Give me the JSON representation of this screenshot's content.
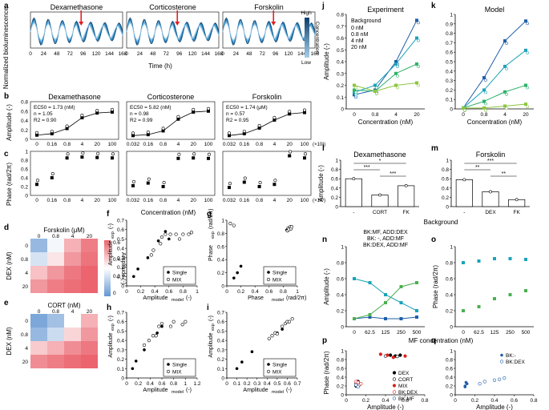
{
  "panel_letters": [
    "a",
    "b",
    "c",
    "d",
    "e",
    "f",
    "g",
    "h",
    "i",
    "j",
    "k",
    "l",
    "m",
    "n",
    "o",
    "p",
    "q"
  ],
  "chart_data": [
    {
      "id": "a",
      "type": "line",
      "ylabel": "Normalized bioluminescence",
      "xlabel": "Time (h)",
      "xticks": [
        "0",
        "24",
        "48",
        "72",
        "96",
        "120",
        "144",
        "168"
      ],
      "titles": [
        "Dexamethasone",
        "Corticosterone",
        "Forskolin"
      ],
      "colorbar": {
        "high": "High",
        "low": "Low",
        "label": "Concentration"
      },
      "ylim": [
        0,
        1.5
      ],
      "yticks": [
        "0",
        "0.5",
        "1",
        "1.5"
      ]
    },
    {
      "id": "b",
      "type": "scatter",
      "ylabel": "Amplitude (-)",
      "yticks": [
        "0",
        "0.2",
        "0.4",
        "0.6",
        "0.8"
      ],
      "panels": [
        {
          "title": "Dexamethasone",
          "x": [
            "0",
            "0.16",
            "0.8",
            "4",
            "20",
            "100"
          ],
          "fit": [
            0.09,
            0.12,
            0.23,
            0.46,
            0.56,
            0.58
          ],
          "stats": [
            "EC50 = 1.73 (nM)",
            "n = 1.05",
            "R2 = 0.90"
          ]
        },
        {
          "title": "Corticosterone",
          "x": [
            "0.032",
            "0.16",
            "0.8",
            "4",
            "20",
            "100"
          ],
          "fit": [
            0.08,
            0.1,
            0.18,
            0.43,
            0.58,
            0.6
          ],
          "stats": [
            "EC50 = 5.82 (nM)",
            "n = 0.98",
            "R2 = 0.99"
          ]
        },
        {
          "title": "Forskolin",
          "x": [
            "0.032",
            "0.16",
            "0.8",
            "4",
            "20",
            "100"
          ],
          "fit": [
            0.08,
            0.12,
            0.24,
            0.41,
            0.54,
            0.57
          ],
          "stats": [
            "EC50 = 1.74 (μM)",
            "n = 0.57",
            "R2 = 0.95"
          ],
          "unit": "(×10³)"
        }
      ]
    },
    {
      "id": "c",
      "type": "scatter",
      "ylabel": "Phase (rad/2π)",
      "xlabel": "Concentration (nM)",
      "yticks": [
        "0",
        "0.2",
        "0.4",
        "0.6",
        "0.8",
        "1"
      ],
      "panels": [
        {
          "x": [
            "0",
            "0.16",
            "0.8",
            "4",
            "20",
            "100"
          ],
          "values": [
            0.25,
            0.4,
            0.85,
            0.87,
            0.86,
            0.85
          ]
        },
        {
          "x": [
            "0.032",
            "0.16",
            "0.8",
            "4",
            "20",
            "100"
          ],
          "values": [
            0.22,
            0.28,
            0.2,
            0.84,
            0.85,
            0.84
          ]
        },
        {
          "x": [
            "0.032",
            "0.16",
            "0.8",
            "4",
            "20",
            "100"
          ],
          "values": [
            0.18,
            0.3,
            0.2,
            0.25,
            0.9,
            0.85
          ],
          "unit": "(×10³)"
        }
      ]
    },
    {
      "id": "d",
      "type": "heatmap",
      "title": "Forskolin (μM)",
      "ylabel": "DEX (nM)",
      "cols": [
        "0",
        "0.8",
        "4",
        "20"
      ],
      "rows": [
        "0",
        "0.8",
        "4",
        "20"
      ],
      "values": [
        [
          0.1,
          0.28,
          0.45,
          0.55
        ],
        [
          0.22,
          0.35,
          0.5,
          0.57
        ],
        [
          0.42,
          0.5,
          0.56,
          0.6
        ],
        [
          0.5,
          0.55,
          0.58,
          0.6
        ]
      ],
      "colorbar": {
        "label": "Amplitude (-)",
        "ticks": [
          "0.6",
          "0.4",
          "0.2",
          "0"
        ]
      }
    },
    {
      "id": "e",
      "type": "heatmap",
      "title": "CORT (nM)",
      "ylabel": "DEX (nM)",
      "cols": [
        "0",
        "0.8",
        "4",
        "20"
      ],
      "rows": [
        "0",
        "0.8",
        "4",
        "20"
      ],
      "values": [
        [
          0.05,
          0.12,
          0.3,
          0.45
        ],
        [
          0.1,
          0.2,
          0.38,
          0.5
        ],
        [
          0.4,
          0.45,
          0.52,
          0.56
        ],
        [
          0.52,
          0.55,
          0.58,
          0.6
        ]
      ]
    },
    {
      "id": "f",
      "type": "scatter",
      "xlabel": "Amplitude",
      "xsub": "model",
      "xunit": "(-)",
      "ylabel": "Amplitude",
      "ysub": "exp",
      "yunit": "(-)",
      "xticks": [
        "0",
        "0.2",
        "0.4",
        "0.6",
        "0.8",
        "1"
      ],
      "yticks": [
        "0",
        "0.1",
        "0.2",
        "0.3",
        "0.4",
        "0.5",
        "0.6",
        "0.7"
      ],
      "xlim": [
        0,
        1
      ],
      "ylim": [
        0,
        0.7
      ],
      "legend": [
        "Single",
        "MIX"
      ],
      "single": [
        [
          0.1,
          0.1
        ],
        [
          0.16,
          0.18
        ],
        [
          0.3,
          0.3
        ],
        [
          0.45,
          0.48
        ],
        [
          0.55,
          0.58
        ],
        [
          0.6,
          0.5
        ]
      ],
      "mix": [
        [
          0.35,
          0.33
        ],
        [
          0.38,
          0.38
        ],
        [
          0.48,
          0.45
        ],
        [
          0.5,
          0.52
        ],
        [
          0.55,
          0.55
        ],
        [
          0.62,
          0.55
        ],
        [
          0.7,
          0.55
        ],
        [
          0.75,
          0.5
        ],
        [
          0.8,
          0.55
        ],
        [
          0.88,
          0.55
        ],
        [
          0.92,
          0.57
        ]
      ]
    },
    {
      "id": "g",
      "type": "scatter",
      "xlabel": "Phase",
      "xsub": "model",
      "xunit": "(rad/2π)",
      "ylabel": "Phase",
      "ysub": "exp",
      "yunit": "(rad/2π)",
      "xticks": [
        "0",
        "0.2",
        "0.4",
        "0.6",
        "0.8",
        "1"
      ],
      "yticks": [
        "0",
        "0.2",
        "0.4",
        "0.6",
        "0.8",
        "1"
      ],
      "xlim": [
        0,
        1
      ],
      "ylim": [
        0,
        1
      ],
      "legend": [
        "Single",
        "MIX"
      ],
      "single": [
        [
          0.1,
          0.12
        ],
        [
          0.15,
          0.2
        ],
        [
          0.2,
          0.3
        ],
        [
          0.85,
          0.85
        ],
        [
          0.88,
          0.87
        ],
        [
          0.9,
          0.88
        ]
      ],
      "mix": [
        [
          0.05,
          0.95
        ],
        [
          0.1,
          0.92
        ],
        [
          0.86,
          0.84
        ],
        [
          0.87,
          0.88
        ],
        [
          0.88,
          0.86
        ],
        [
          0.9,
          0.9
        ],
        [
          0.91,
          0.87
        ],
        [
          0.92,
          0.9
        ]
      ]
    },
    {
      "id": "h",
      "type": "scatter",
      "xlabel": "Amplitude",
      "xsub": "model",
      "xunit": "(-)",
      "ylabel": "Amplitude",
      "ysub": "exp",
      "yunit": "(-)",
      "xticks": [
        "0",
        "0.2",
        "0.4",
        "0.6",
        "0.8",
        "1",
        "1.2"
      ],
      "yticks": [
        "0",
        "0.1",
        "0.2",
        "0.3",
        "0.4",
        "0.5",
        "0.6",
        "0.7"
      ],
      "xlim": [
        0,
        1.2
      ],
      "ylim": [
        0,
        0.7
      ],
      "legend": [
        "Single",
        "MIX"
      ],
      "single": [
        [
          0.1,
          0.1
        ],
        [
          0.16,
          0.18
        ],
        [
          0.3,
          0.3
        ],
        [
          0.45,
          0.45
        ],
        [
          0.52,
          0.48
        ],
        [
          0.6,
          0.55
        ]
      ],
      "mix": [
        [
          0.3,
          0.35
        ],
        [
          0.38,
          0.4
        ],
        [
          0.45,
          0.45
        ],
        [
          0.5,
          0.45
        ],
        [
          0.55,
          0.55
        ],
        [
          0.6,
          0.58
        ],
        [
          0.75,
          0.55
        ],
        [
          0.8,
          0.6
        ],
        [
          1.0,
          0.6
        ],
        [
          0.95,
          0.57
        ]
      ]
    },
    {
      "id": "i",
      "type": "scatter",
      "xlabel": "Amplitude",
      "xsub": "model",
      "xunit": "(-)",
      "ylabel": "Amplitude",
      "ysub": "exp",
      "yunit": "(-)",
      "xticks": [
        "0",
        "0.1",
        "0.2",
        "0.3",
        "0.4",
        "0.5",
        "0.6",
        "0.7"
      ],
      "yticks": [
        "0",
        "0.1",
        "0.2",
        "0.3",
        "0.4",
        "0.5",
        "0.6",
        "0.7"
      ],
      "xlim": [
        0,
        0.7
      ],
      "ylim": [
        0,
        0.7
      ],
      "legend": [
        "Single",
        "MIX"
      ],
      "single": [
        [
          0.1,
          0.1
        ],
        [
          0.15,
          0.17
        ],
        [
          0.25,
          0.28
        ],
        [
          0.45,
          0.45
        ],
        [
          0.5,
          0.48
        ],
        [
          0.55,
          0.52
        ]
      ],
      "mix": [
        [
          0.42,
          0.42
        ],
        [
          0.45,
          0.45
        ],
        [
          0.48,
          0.48
        ],
        [
          0.5,
          0.47
        ],
        [
          0.55,
          0.55
        ],
        [
          0.58,
          0.58
        ],
        [
          0.6,
          0.6
        ],
        [
          0.62,
          0.6
        ],
        [
          0.65,
          0.63
        ]
      ]
    },
    {
      "id": "j",
      "type": "line",
      "title": "Experiment",
      "xlabel": "Concentration (nM)",
      "ylabel": "Amplitude (-)",
      "categories": [
        "0",
        "0.8",
        "4",
        "20"
      ],
      "ylim": [
        0,
        0.8
      ],
      "yticks": [
        "0",
        "0.1",
        "0.2",
        "0.3",
        "0.4",
        "0.5",
        "0.6",
        "0.7",
        "0.8"
      ],
      "legend_title": "Background",
      "series": [
        {
          "name": "0 nM",
          "color": "#1f5fa8",
          "values": [
            0.12,
            0.16,
            0.4,
            0.75
          ]
        },
        {
          "name": "0.8 nM",
          "color": "#1aa3b8",
          "values": [
            0.14,
            0.2,
            0.38,
            0.6
          ]
        },
        {
          "name": "4 nM",
          "color": "#2cb36a",
          "values": [
            0.16,
            0.15,
            0.3,
            0.38
          ]
        },
        {
          "name": "20 nM",
          "color": "#8dc63f",
          "values": [
            0.2,
            0.15,
            0.2,
            0.22
          ]
        }
      ]
    },
    {
      "id": "k",
      "type": "line",
      "title": "Model",
      "xlabel": "Concentration (nM)",
      "ylabel": "",
      "categories": [
        "0",
        "0.8",
        "4",
        "20"
      ],
      "ylim": [
        0,
        1
      ],
      "yticks": [
        "0",
        "0.1",
        "0.2",
        "0.3",
        "0.4",
        "0.5",
        "0.6",
        "0.7",
        "0.8",
        "0.9",
        "1"
      ],
      "series": [
        {
          "name": "0 nM",
          "color": "#1f5fa8",
          "values": [
            0.01,
            0.33,
            0.72,
            0.93
          ]
        },
        {
          "name": "0.8 nM",
          "color": "#1aa3b8",
          "values": [
            0.01,
            0.2,
            0.45,
            0.62
          ]
        },
        {
          "name": "4 nM",
          "color": "#2cb36a",
          "values": [
            0.01,
            0.08,
            0.18,
            0.25
          ]
        },
        {
          "name": "20 nM",
          "color": "#8dc63f",
          "values": [
            0.01,
            0.01,
            0.03,
            0.05
          ]
        }
      ]
    },
    {
      "id": "l",
      "type": "bar",
      "title": "Dexamethasone",
      "ylabel": "Amplitude (-)",
      "xlabel": "Background",
      "categories": [
        "-",
        "CORT",
        "FK"
      ],
      "values": [
        0.6,
        0.25,
        0.45
      ],
      "ylim": [
        0,
        1
      ],
      "yticks": [
        "0",
        "0.2",
        "0.4",
        "0.6",
        "0.8",
        "1"
      ],
      "sig": [
        "*",
        "***",
        "***"
      ]
    },
    {
      "id": "m",
      "type": "bar",
      "title": "Forskolin",
      "ylabel": "",
      "xlabel": "",
      "categories": [
        "-",
        "DEX",
        "FK"
      ],
      "values": [
        0.58,
        0.32,
        0.15
      ],
      "ylim": [
        0,
        1
      ],
      "yticks": [
        "0",
        "0.2",
        "0.4",
        "0.6",
        "0.8",
        "1"
      ],
      "sig": [
        "***",
        "**",
        "**"
      ]
    },
    {
      "id": "n",
      "type": "line",
      "xlabel": "",
      "ylabel": "Amplitude (-)",
      "categories": [
        "0",
        "62.5",
        "125",
        "250",
        "500"
      ],
      "ylim": [
        0,
        1
      ],
      "yticks": [
        "0",
        "0.2",
        "0.4",
        "0.6",
        "0.8",
        "1"
      ],
      "series": [
        {
          "name": "BK:MF, ADD:DEX",
          "color": "#1aa3b8",
          "values": [
            0.6,
            0.55,
            0.4,
            0.3,
            0.2
          ]
        },
        {
          "name": "BK: -, ADD:MF",
          "color": "#1f5fa8",
          "values": [
            0.1,
            0.12,
            0.1,
            0.1,
            0.12
          ]
        },
        {
          "name": "BK:DEX, ADD:MF",
          "color": "#4caf50",
          "values": [
            0.1,
            0.15,
            0.3,
            0.5,
            0.55
          ]
        }
      ]
    },
    {
      "id": "o",
      "type": "scatter",
      "xlabel": "",
      "ylabel": "Phase (rad/2π)",
      "categories": [
        "0",
        "62.5",
        "125",
        "250",
        "500"
      ],
      "ylim": [
        0,
        1
      ],
      "yticks": [
        "0",
        "0.2",
        "0.4",
        "0.6",
        "0.8",
        "1"
      ],
      "xaxis_label": "MF concentration (nM)",
      "series": [
        {
          "color": "#1aa3b8",
          "values": [
            0.8,
            0.82,
            0.85,
            0.85,
            0.84
          ]
        },
        {
          "color": "#4caf50",
          "values": [
            0.2,
            0.25,
            0.35,
            0.4,
            0.45
          ]
        }
      ]
    },
    {
      "id": "p",
      "type": "scatter",
      "xlabel": "Amplitude (-)",
      "ylabel": "Phase (rad/2π)",
      "xticks": [
        "0",
        "0.2",
        "0.4",
        "0.6",
        "0.8"
      ],
      "yticks": [
        "0",
        "0.2",
        "0.4",
        "0.6",
        "0.8",
        "1"
      ],
      "xlim": [
        0,
        0.8
      ],
      "ylim": [
        0,
        1
      ],
      "legend": [
        "DEX",
        "CORT",
        "MIX",
        "BK:DEX",
        "BK:MF"
      ],
      "colors": [
        "#000000",
        "#000000",
        "#e02020",
        "#e02020",
        "#1f5fa8"
      ],
      "groups": [
        [
          [
            0.1,
            0.2
          ],
          [
            0.12,
            0.3
          ],
          [
            0.45,
            0.9
          ],
          [
            0.5,
            0.88
          ],
          [
            0.55,
            0.9
          ]
        ],
        [
          [
            0.1,
            0.25
          ],
          [
            0.13,
            0.22
          ],
          [
            0.4,
            0.88
          ],
          [
            0.52,
            0.87
          ]
        ],
        [
          [
            0.35,
            0.92
          ],
          [
            0.42,
            0.9
          ],
          [
            0.48,
            0.85
          ],
          [
            0.6,
            0.88
          ]
        ],
        [
          [
            0.1,
            0.3
          ],
          [
            0.15,
            0.25
          ],
          [
            0.12,
            0.28
          ]
        ],
        [
          [
            0.1,
            0.22
          ],
          [
            0.12,
            0.18
          ]
        ]
      ]
    },
    {
      "id": "q",
      "type": "scatter",
      "xlabel": "Amplitude (-)",
      "ylabel": "",
      "xticks": [
        "0",
        "0.2",
        "0.4",
        "0.6",
        "0.8"
      ],
      "yticks": [
        "0",
        "0.2",
        "0.4",
        "0.6",
        "0.8",
        "1"
      ],
      "xlim": [
        0,
        0.8
      ],
      "ylim": [
        0,
        1
      ],
      "legend": [
        "BK:-",
        "BK:DEX"
      ],
      "groups": [
        [
          [
            0.1,
            0.2
          ],
          [
            0.12,
            0.25
          ],
          [
            0.1,
            0.18
          ],
          [
            0.11,
            0.28
          ]
        ],
        [
          [
            0.25,
            0.25
          ],
          [
            0.3,
            0.3
          ],
          [
            0.4,
            0.33
          ],
          [
            0.45,
            0.35
          ],
          [
            0.5,
            0.38
          ]
        ]
      ]
    }
  ]
}
